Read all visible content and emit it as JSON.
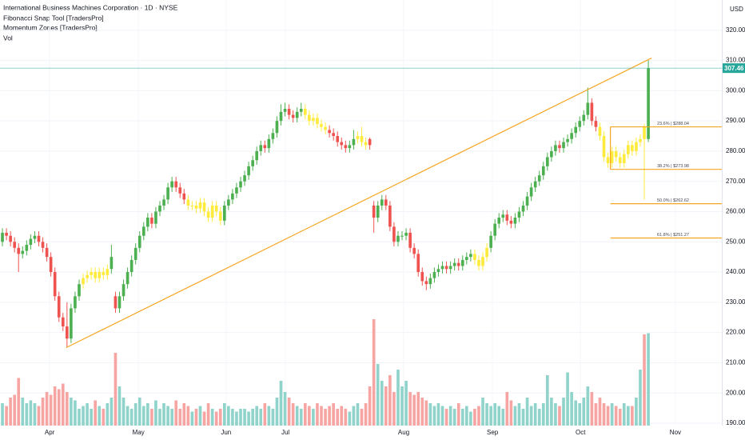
{
  "chart_data": {
    "type": "candlestick",
    "title": "International Business Machines Corporation · 1D · NYSE",
    "indicators": [
      "Fibonacci Snap Tool [TradersPro]",
      "Momentum Zones [TradersPro]",
      "Vol"
    ],
    "currency": "USD",
    "last_price": 307.46,
    "ylim": [
      189.2,
      330
    ],
    "yticks": [
      {
        "value": 190,
        "label": "190.00"
      },
      {
        "value": 200,
        "label": "200.00"
      },
      {
        "value": 210,
        "label": "210.00"
      },
      {
        "value": 220,
        "label": "220.00"
      },
      {
        "value": 230,
        "label": "230.00"
      },
      {
        "value": 240,
        "label": "240.00"
      },
      {
        "value": 250,
        "label": "250.00"
      },
      {
        "value": 260,
        "label": "260.00"
      },
      {
        "value": 270,
        "label": "270.00"
      },
      {
        "value": 280,
        "label": "280.00"
      },
      {
        "value": 290,
        "label": "290.00"
      },
      {
        "value": 300,
        "label": "300.00"
      },
      {
        "value": 310,
        "label": "310.00"
      },
      {
        "value": 320,
        "label": "320.00"
      }
    ],
    "xlim": [
      -0.6,
      178.2
    ],
    "xticks": [
      {
        "value": 11.7,
        "label": "Apr"
      },
      {
        "value": 33.7,
        "label": "May"
      },
      {
        "value": 55.4,
        "label": "Jun"
      },
      {
        "value": 70.1,
        "label": "Jul"
      },
      {
        "value": 99.4,
        "label": "Aug"
      },
      {
        "value": 121.4,
        "label": "Sep"
      },
      {
        "value": 143.2,
        "label": "Oct"
      },
      {
        "value": 166.7,
        "label": "Nov"
      }
    ],
    "grid": true,
    "colors": {
      "up": "#4caf50",
      "down": "#ef5350",
      "neutral": "#ffeb3b",
      "volume_up": "#8fd3cb",
      "volume_down": "#f6a5a3",
      "trendline": "#f5a623",
      "fib": "#f5a623",
      "last_price": "#26a69a"
    },
    "neutral_ranges": [
      [
        20,
        26
      ],
      [
        46,
        54
      ],
      [
        75,
        80
      ],
      [
        88,
        90
      ],
      [
        117,
        120
      ],
      [
        148,
        159
      ]
    ],
    "ohlc": [
      [
        250,
        254.5,
        248.5,
        253
      ],
      [
        253,
        254.5,
        250.5,
        252
      ],
      [
        252,
        253.5,
        248.5,
        250
      ],
      [
        250,
        251.5,
        246.5,
        248
      ],
      [
        248,
        249.5,
        240,
        246
      ],
      [
        246,
        248.5,
        244.5,
        247
      ],
      [
        247,
        250.5,
        245.5,
        249
      ],
      [
        249,
        252.5,
        247.5,
        251
      ],
      [
        251,
        253.5,
        249.5,
        252
      ],
      [
        252,
        253.5,
        248.5,
        250
      ],
      [
        250,
        251.5,
        246.5,
        248
      ],
      [
        248,
        249.5,
        243.5,
        245
      ],
      [
        245,
        246.5,
        238.5,
        240
      ],
      [
        240,
        241.5,
        230.5,
        232
      ],
      [
        232,
        233.5,
        223.5,
        225
      ],
      [
        225,
        226.5,
        220.5,
        222
      ],
      [
        222,
        230,
        215,
        218
      ],
      [
        218,
        229.5,
        216.5,
        228
      ],
      [
        228,
        233.5,
        226.5,
        232
      ],
      [
        232,
        237.5,
        230.5,
        236
      ],
      [
        236,
        239.5,
        234.5,
        238
      ],
      [
        238,
        240.5,
        236.5,
        239
      ],
      [
        239,
        241.5,
        237.5,
        240
      ],
      [
        240,
        241.5,
        236.5,
        238
      ],
      [
        238,
        241.5,
        236.5,
        240
      ],
      [
        240,
        241.5,
        237.5,
        239
      ],
      [
        239,
        242.5,
        237.5,
        241
      ],
      [
        241,
        249,
        239.5,
        245
      ],
      [
        232,
        233.5,
        226.5,
        228
      ],
      [
        228,
        233.5,
        226.5,
        232
      ],
      [
        232,
        237.5,
        230.5,
        236
      ],
      [
        236,
        241.5,
        234.5,
        240
      ],
      [
        240,
        245.5,
        238.5,
        244
      ],
      [
        244,
        249.5,
        242.5,
        248
      ],
      [
        248,
        253.5,
        246.5,
        252
      ],
      [
        252,
        256.5,
        250.5,
        255
      ],
      [
        255,
        259.5,
        253.5,
        258
      ],
      [
        258,
        259.5,
        254.5,
        256
      ],
      [
        256,
        261.5,
        254.5,
        260
      ],
      [
        260,
        263.5,
        258.5,
        262
      ],
      [
        262,
        265.5,
        260.5,
        264
      ],
      [
        264,
        269.5,
        262.5,
        268
      ],
      [
        268,
        271.5,
        266.5,
        270
      ],
      [
        270,
        271.5,
        266.5,
        268
      ],
      [
        268,
        269.5,
        264.5,
        266
      ],
      [
        266,
        267.5,
        262.5,
        264
      ],
      [
        264,
        265.5,
        260.5,
        262
      ],
      [
        262,
        263.5,
        260.5,
        262
      ],
      [
        262,
        263.5,
        259.5,
        261
      ],
      [
        261,
        264.5,
        259.5,
        263
      ],
      [
        263,
        264.5,
        258.5,
        260
      ],
      [
        260,
        261.5,
        256.5,
        258
      ],
      [
        258,
        263.5,
        256.5,
        262
      ],
      [
        262,
        263.5,
        258.5,
        260
      ],
      [
        260,
        261.5,
        255.5,
        257
      ],
      [
        257,
        263.5,
        255.5,
        262
      ],
      [
        262,
        265.5,
        260.5,
        264
      ],
      [
        264,
        267.5,
        262.5,
        266
      ],
      [
        266,
        269.5,
        264.5,
        268
      ],
      [
        268,
        271.5,
        266.5,
        270
      ],
      [
        270,
        273.5,
        268.5,
        272
      ],
      [
        272,
        276.5,
        270.5,
        275
      ],
      [
        275,
        278.5,
        273.5,
        277
      ],
      [
        277,
        281.5,
        275.5,
        280
      ],
      [
        280,
        283.5,
        278.5,
        282
      ],
      [
        282,
        283.5,
        279.5,
        281
      ],
      [
        281,
        285.5,
        279.5,
        284
      ],
      [
        284,
        287.5,
        282.5,
        286
      ],
      [
        286,
        291.5,
        284.5,
        290
      ],
      [
        290,
        295.5,
        288.5,
        293
      ],
      [
        293,
        296,
        291.5,
        294
      ],
      [
        294,
        295.5,
        290.5,
        292
      ],
      [
        292,
        293.5,
        289.5,
        291
      ],
      [
        291,
        294.5,
        289.5,
        293
      ],
      [
        293,
        296,
        291.5,
        294
      ],
      [
        294,
        295.5,
        290.5,
        292
      ],
      [
        292,
        293.5,
        288.5,
        290
      ],
      [
        290,
        292.5,
        288.5,
        291
      ],
      [
        291,
        292.5,
        287.5,
        289
      ],
      [
        289,
        290.5,
        286.5,
        288
      ],
      [
        288,
        289.5,
        285.5,
        287
      ],
      [
        287,
        288.5,
        284.5,
        286
      ],
      [
        286,
        287.5,
        283.5,
        285
      ],
      [
        285,
        286.5,
        281.5,
        283
      ],
      [
        283,
        284.5,
        280.5,
        282
      ],
      [
        282,
        283.5,
        279.5,
        281
      ],
      [
        281,
        283.5,
        279.5,
        282
      ],
      [
        282,
        287,
        280.5,
        284
      ],
      [
        284,
        286.5,
        282.5,
        285
      ],
      [
        285,
        288,
        281.5,
        283
      ],
      [
        283,
        284.5,
        280.5,
        282
      ],
      [
        284,
        284.5,
        280.5,
        282
      ],
      [
        262,
        263.5,
        253,
        258
      ],
      [
        258,
        263.5,
        256.5,
        262
      ],
      [
        262,
        265.5,
        260.5,
        264
      ],
      [
        264,
        265.5,
        260.5,
        262
      ],
      [
        262,
        263.5,
        253.5,
        255
      ],
      [
        255,
        256.5,
        248.5,
        250
      ],
      [
        250,
        253.5,
        248.5,
        252
      ],
      [
        252,
        253.5,
        250.5,
        252
      ],
      [
        252,
        254.5,
        250.5,
        253
      ],
      [
        253,
        254.5,
        246.5,
        248
      ],
      [
        248,
        249.5,
        244.5,
        246
      ],
      [
        246,
        247.5,
        238.5,
        240
      ],
      [
        240,
        241.5,
        235.5,
        237
      ],
      [
        237,
        238.5,
        234,
        236
      ],
      [
        236,
        239.5,
        234.5,
        238
      ],
      [
        238,
        241.5,
        236.5,
        240
      ],
      [
        240,
        242.5,
        238.5,
        241
      ],
      [
        241,
        243.5,
        239.5,
        242
      ],
      [
        242,
        243.5,
        239.5,
        241
      ],
      [
        241,
        243.5,
        239.5,
        242
      ],
      [
        242,
        244.5,
        240.5,
        243
      ],
      [
        243,
        244.5,
        240.5,
        242
      ],
      [
        242,
        245.5,
        240.5,
        244
      ],
      [
        244,
        246.5,
        242.5,
        245
      ],
      [
        245,
        247.5,
        243.5,
        246
      ],
      [
        246,
        247.5,
        242.5,
        244
      ],
      [
        244,
        245.5,
        240.5,
        242
      ],
      [
        242,
        246.5,
        240.5,
        245
      ],
      [
        245,
        249.5,
        243.5,
        248
      ],
      [
        248,
        253.5,
        246.5,
        252
      ],
      [
        252,
        257.5,
        250.5,
        256
      ],
      [
        256,
        259.5,
        254.5,
        258
      ],
      [
        258,
        260.5,
        256.5,
        259
      ],
      [
        259,
        260.5,
        255.5,
        257
      ],
      [
        257,
        258.5,
        254.5,
        256
      ],
      [
        256,
        259.5,
        254.5,
        258
      ],
      [
        258,
        261.5,
        256.5,
        260
      ],
      [
        260,
        263.5,
        258.5,
        262
      ],
      [
        262,
        266.5,
        260.5,
        265
      ],
      [
        265,
        269.5,
        263.5,
        268
      ],
      [
        268,
        271.5,
        266.5,
        270
      ],
      [
        270,
        273.5,
        268.5,
        272
      ],
      [
        272,
        276.5,
        270.5,
        275
      ],
      [
        275,
        279.5,
        273.5,
        278
      ],
      [
        278,
        281.5,
        276.5,
        280
      ],
      [
        280,
        283.5,
        278.5,
        282
      ],
      [
        282,
        283.5,
        279.5,
        281
      ],
      [
        281,
        284.5,
        279.5,
        283
      ],
      [
        283,
        285.5,
        281.5,
        284
      ],
      [
        284,
        287.5,
        282.5,
        286
      ],
      [
        286,
        289.5,
        284.5,
        288
      ],
      [
        288,
        291.5,
        286.5,
        290
      ],
      [
        290,
        293.5,
        288.5,
        292
      ],
      [
        292,
        301,
        290.5,
        296
      ],
      [
        296,
        297.5,
        288.5,
        290
      ],
      [
        290,
        291.5,
        286.5,
        288
      ],
      [
        288,
        289.5,
        283.5,
        285
      ],
      [
        285,
        286.5,
        276.5,
        278
      ],
      [
        278,
        279.5,
        274.5,
        276
      ],
      [
        276,
        281.5,
        274.5,
        280
      ],
      [
        280,
        281.5,
        276.5,
        278
      ],
      [
        278,
        279.5,
        274.5,
        276
      ],
      [
        276,
        280.5,
        274.5,
        279
      ],
      [
        279,
        283.5,
        277.5,
        282
      ],
      [
        282,
        283.5,
        278.5,
        280
      ],
      [
        280,
        284.5,
        278.5,
        283
      ],
      [
        283,
        285.5,
        281.5,
        284
      ],
      [
        288,
        289,
        264,
        284
      ],
      [
        284,
        310,
        283,
        307.46
      ]
    ],
    "volume_lim": [
      0,
      20
    ],
    "volume": [
      4,
      3.5,
      5,
      5.5,
      8.5,
      5,
      4,
      4.5,
      4,
      3.5,
      5,
      6,
      5.5,
      7,
      6.5,
      7.5,
      6,
      5,
      4.5,
      3,
      3.5,
      4,
      3,
      4.5,
      3.5,
      3,
      4,
      5,
      13,
      7,
      5,
      3.5,
      3,
      4,
      5,
      3.5,
      4,
      3,
      4.5,
      3,
      4,
      3.5,
      3,
      4.5,
      3,
      4,
      3.5,
      2.5,
      3,
      3.5,
      2.5,
      4,
      3,
      2.5,
      3,
      4,
      3.5,
      3,
      2.5,
      3,
      3,
      2.5,
      3,
      3.5,
      3,
      4,
      3.5,
      3,
      5,
      8,
      6,
      5,
      4,
      3.5,
      3,
      4,
      3.5,
      3,
      4,
      3.5,
      3,
      3.5,
      4,
      3,
      3.5,
      3,
      2.5,
      3.5,
      4,
      3,
      4,
      7,
      19,
      11,
      8,
      7,
      9,
      6,
      10,
      7,
      8,
      6,
      5.5,
      6,
      5,
      4.5,
      4,
      3.5,
      4,
      3.5,
      3,
      3.5,
      3,
      4,
      3,
      3.5,
      2.5,
      3,
      3.5,
      5,
      4,
      3.5,
      4,
      3.5,
      3,
      6,
      4.5,
      3.5,
      4,
      3,
      5,
      3.5,
      4,
      3,
      4,
      9,
      5,
      4,
      3.5,
      5,
      9.5,
      6,
      4.5,
      4,
      5,
      7,
      6,
      4,
      5,
      4,
      3.5,
      4,
      3.5,
      3,
      4,
      3.5,
      3.5,
      5,
      10,
      16.3,
      16.5
    ],
    "trendline": [
      {
        "x": 15.8,
        "y": 215
      },
      {
        "x": 160.8,
        "y": 310.8
      }
    ],
    "fib_start": 150.6,
    "fib_levels": [
      {
        "value": 288.04,
        "label": "23.6% | $288.04"
      },
      {
        "value": 273.98,
        "label": "38.2% | $273.98"
      },
      {
        "value": 262.62,
        "label": "50.0% | $262.62"
      },
      {
        "value": 251.27,
        "label": "61.8% | $251.27"
      }
    ]
  }
}
